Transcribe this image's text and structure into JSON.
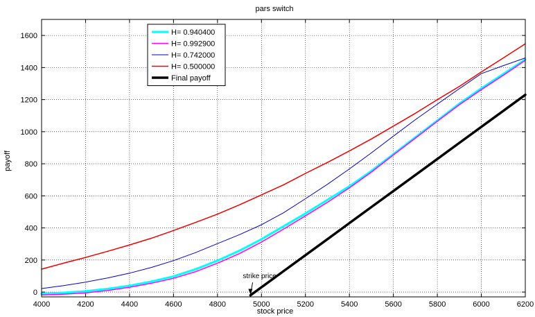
{
  "chart_data": {
    "type": "line",
    "title": "pars switch",
    "xlabel": "stock price",
    "ylabel": "payoff",
    "xlim": [
      4000,
      6200
    ],
    "ylim": [
      -30,
      1700
    ],
    "xticks": [
      4000,
      4200,
      4400,
      4600,
      4800,
      5000,
      5200,
      5400,
      5600,
      5800,
      6000,
      6200
    ],
    "yticks": [
      0,
      200,
      400,
      600,
      800,
      1000,
      1200,
      1400,
      1600
    ],
    "grid": true,
    "legend_position": "top-left",
    "x": [
      4000,
      4100,
      4200,
      4300,
      4400,
      4500,
      4600,
      4700,
      4800,
      4900,
      5000,
      5100,
      5200,
      5300,
      5400,
      5500,
      5600,
      5700,
      5800,
      5900,
      6000,
      6100,
      6200
    ],
    "series": [
      {
        "name": "H= 0.940400",
        "color": "#00ffff",
        "width": 3,
        "values": [
          -10,
          -4,
          5,
          20,
          40,
          66,
          98,
          142,
          196,
          258,
          330,
          410,
          490,
          575,
          660,
          755,
          860,
          965,
          1070,
          1175,
          1270,
          1360,
          1450
        ]
      },
      {
        "name": "H= 0.992900",
        "color": "#ff00ff",
        "width": 1.5,
        "values": [
          -18,
          -13,
          -5,
          10,
          30,
          55,
          86,
          127,
          180,
          240,
          312,
          392,
          475,
          560,
          650,
          748,
          855,
          960,
          1065,
          1168,
          1262,
          1352,
          1445
        ]
      },
      {
        "name": "H= 0.742000",
        "color": "#0000cc",
        "width": 1,
        "values": [
          22,
          40,
          62,
          88,
          118,
          154,
          196,
          246,
          302,
          358,
          420,
          494,
          582,
          672,
          768,
          868,
          972,
          1075,
          1172,
          1268,
          1362,
          1412,
          1460
        ]
      },
      {
        "name": "H= 0.500000",
        "color": "#ee0000",
        "width": 1.5,
        "values": [
          143,
          180,
          216,
          254,
          294,
          336,
          384,
          434,
          486,
          544,
          606,
          668,
          740,
          808,
          880,
          955,
          1035,
          1115,
          1200,
          1282,
          1372,
          1460,
          1548
        ]
      },
      {
        "name": "Final payoff",
        "color": "#000000",
        "width": 3.5,
        "values": [
          null,
          null,
          null,
          null,
          null,
          null,
          null,
          null,
          null,
          null,
          30,
          130,
          230,
          330,
          430,
          530,
          630,
          730,
          830,
          930,
          1030,
          1130,
          1230
        ],
        "start_point": [
          4950,
          -20
        ]
      }
    ],
    "annotations": [
      {
        "text": "strike price",
        "arrow_tip": [
          4950,
          -15
        ],
        "arrow_tail": [
          4960,
          60
        ]
      }
    ]
  }
}
